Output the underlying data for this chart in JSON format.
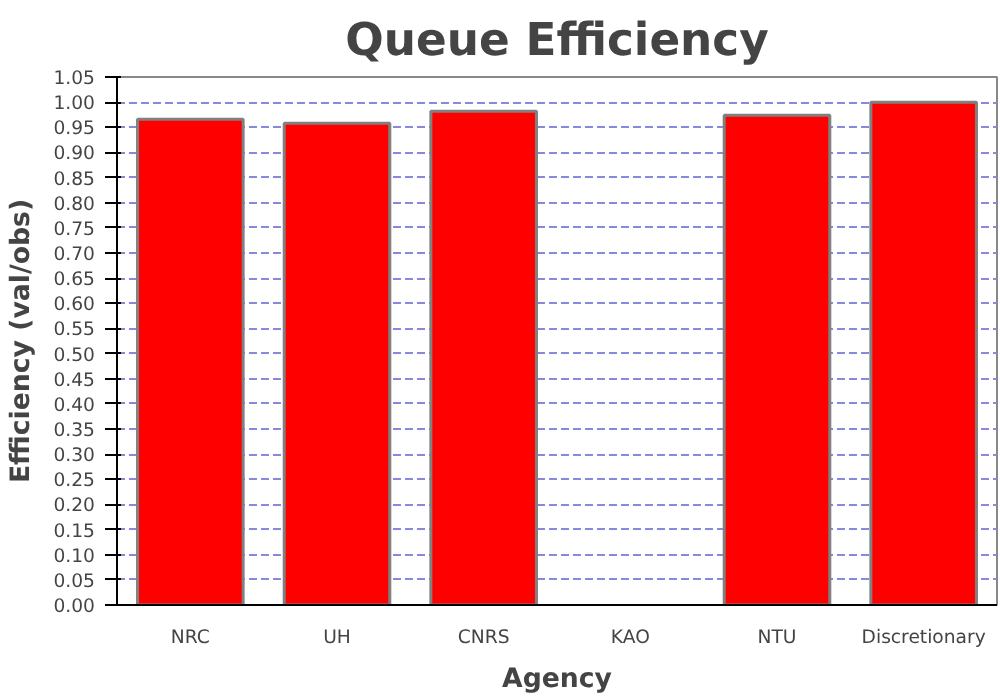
{
  "chart_data": {
    "type": "bar",
    "title": "Queue Efficiency",
    "xlabel": "Agency",
    "ylabel": "Efficiency (val/obs)",
    "categories": [
      "NRC",
      "UH",
      "CNRS",
      "KAO",
      "NTU",
      "Discretionary"
    ],
    "values": [
      0.966,
      0.958,
      0.982,
      null,
      0.974,
      1.0
    ],
    "color": "#ff0000",
    "ylim": [
      0,
      1.05
    ],
    "yticks": [
      {
        "value": 0,
        "label": "0.00"
      },
      {
        "value": 0.05,
        "label": "0.05"
      },
      {
        "value": 0.1,
        "label": "0.10"
      },
      {
        "value": 0.15,
        "label": "0.15"
      },
      {
        "value": 0.2,
        "label": "0.20"
      },
      {
        "value": 0.25,
        "label": "0.25"
      },
      {
        "value": 0.3,
        "label": "0.30"
      },
      {
        "value": 0.35,
        "label": "0.35"
      },
      {
        "value": 0.4,
        "label": "0.40"
      },
      {
        "value": 0.45,
        "label": "0.45"
      },
      {
        "value": 0.5,
        "label": "0.50"
      },
      {
        "value": 0.55,
        "label": "0.55"
      },
      {
        "value": 0.6,
        "label": "0.60"
      },
      {
        "value": 0.65,
        "label": "0.65"
      },
      {
        "value": 0.7,
        "label": "0.70"
      },
      {
        "value": 0.75,
        "label": "0.75"
      },
      {
        "value": 0.8,
        "label": "0.80"
      },
      {
        "value": 0.85,
        "label": "0.85"
      },
      {
        "value": 0.9,
        "label": "0.90"
      },
      {
        "value": 0.95,
        "label": "0.95"
      },
      {
        "value": 1.0,
        "label": "1.00"
      },
      {
        "value": 1.05,
        "label": "1.05"
      }
    ],
    "grid": "y"
  }
}
